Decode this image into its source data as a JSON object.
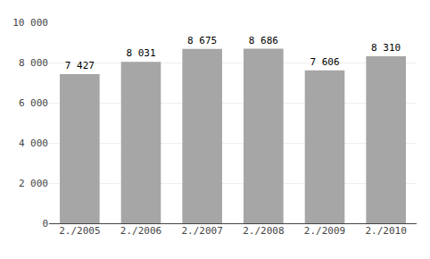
{
  "chart_data": {
    "type": "bar",
    "categories": [
      "2./2005",
      "2./2006",
      "2./2007",
      "2./2008",
      "2./2009",
      "2./2010"
    ],
    "values": [
      7427,
      8031,
      8675,
      8686,
      7606,
      8310
    ],
    "value_labels": [
      "7 427",
      "8 031",
      "8 675",
      "8 686",
      "7 606",
      "8 310"
    ],
    "data_labels": true,
    "color": "#a6a6a6",
    "ylim": [
      0,
      10000
    ],
    "yticks": [
      0,
      {
        "value": 2000,
        "label": "2 000"
      },
      {
        "value": 4000,
        "label": "4 000"
      },
      {
        "value": 6000,
        "label": "6 000"
      },
      {
        "value": 8000,
        "label": "8 000"
      },
      {
        "value": 10000,
        "label": "10 000"
      }
    ],
    "grid": true
  }
}
